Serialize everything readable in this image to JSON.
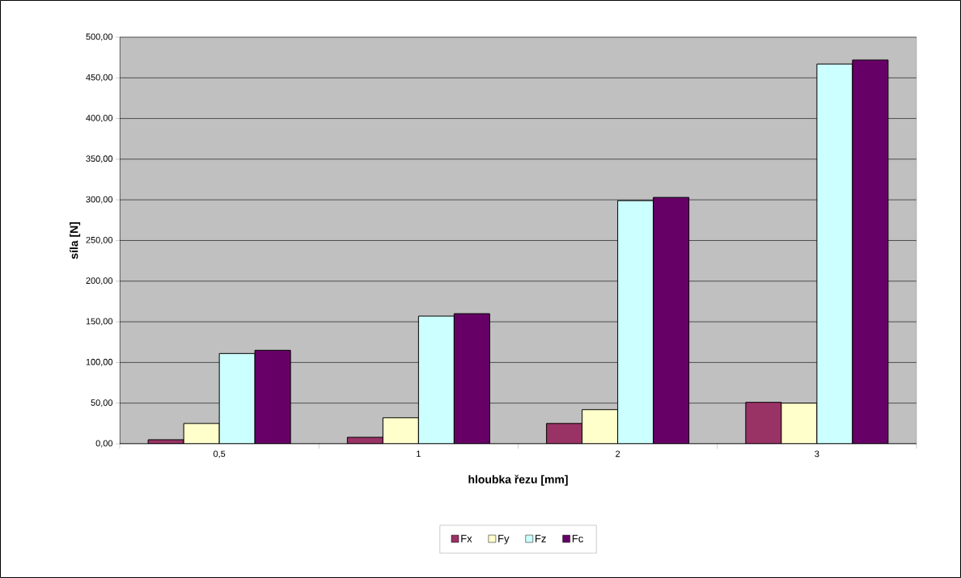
{
  "chart_data": {
    "type": "bar",
    "xlabel": "hloubka řezu [mm]",
    "ylabel": "síla [N]",
    "categories": [
      "0,5",
      "1",
      "2",
      "3"
    ],
    "series": [
      {
        "name": "Fx",
        "color": "#993366",
        "values": [
          5,
          8,
          25,
          51
        ]
      },
      {
        "name": "Fy",
        "color": "#ffffcc",
        "values": [
          25,
          32,
          42,
          50
        ]
      },
      {
        "name": "Fz",
        "color": "#ccffff",
        "values": [
          111,
          157,
          299,
          467
        ]
      },
      {
        "name": "Fc",
        "color": "#660066",
        "values": [
          115,
          160,
          303,
          472
        ]
      }
    ],
    "ylim": [
      0,
      500
    ],
    "yticks": [
      {
        "value": 0,
        "label": "0,00"
      },
      {
        "value": 50,
        "label": "50,00"
      },
      {
        "value": 100,
        "label": "100,00"
      },
      {
        "value": 150,
        "label": "150,00"
      },
      {
        "value": 200,
        "label": "200,00"
      },
      {
        "value": 250,
        "label": "250,00"
      },
      {
        "value": 300,
        "label": "300,00"
      },
      {
        "value": 350,
        "label": "350,00"
      },
      {
        "value": 400,
        "label": "400,00"
      },
      {
        "value": 450,
        "label": "450,00"
      },
      {
        "value": 500,
        "label": "500,00"
      }
    ],
    "grid": "y",
    "legend": "bottom"
  }
}
